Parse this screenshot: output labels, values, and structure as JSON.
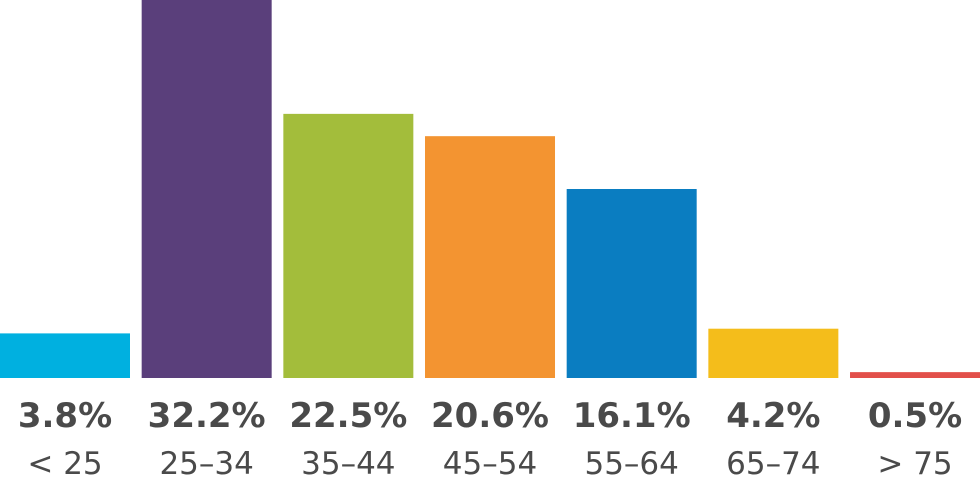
{
  "chart_data": {
    "type": "bar",
    "title": "",
    "xlabel": "",
    "ylabel": "",
    "ylim": [
      0,
      32.2
    ],
    "grid": false,
    "legend": "none",
    "categories": [
      "< 25",
      "25–34",
      "35–44",
      "45–54",
      "55–64",
      "65–74",
      "> 75"
    ],
    "values": [
      3.8,
      32.2,
      22.5,
      20.6,
      16.1,
      4.2,
      0.5
    ],
    "value_labels": [
      "3.8%",
      "32.2%",
      "22.5%",
      "20.6%",
      "16.1%",
      "4.2%",
      "0.5%"
    ],
    "colors": [
      "#00b0e0",
      "#5a3f7b",
      "#a3bd3b",
      "#f39431",
      "#0a7dc1",
      "#f4bd1b",
      "#e24f4a"
    ]
  }
}
